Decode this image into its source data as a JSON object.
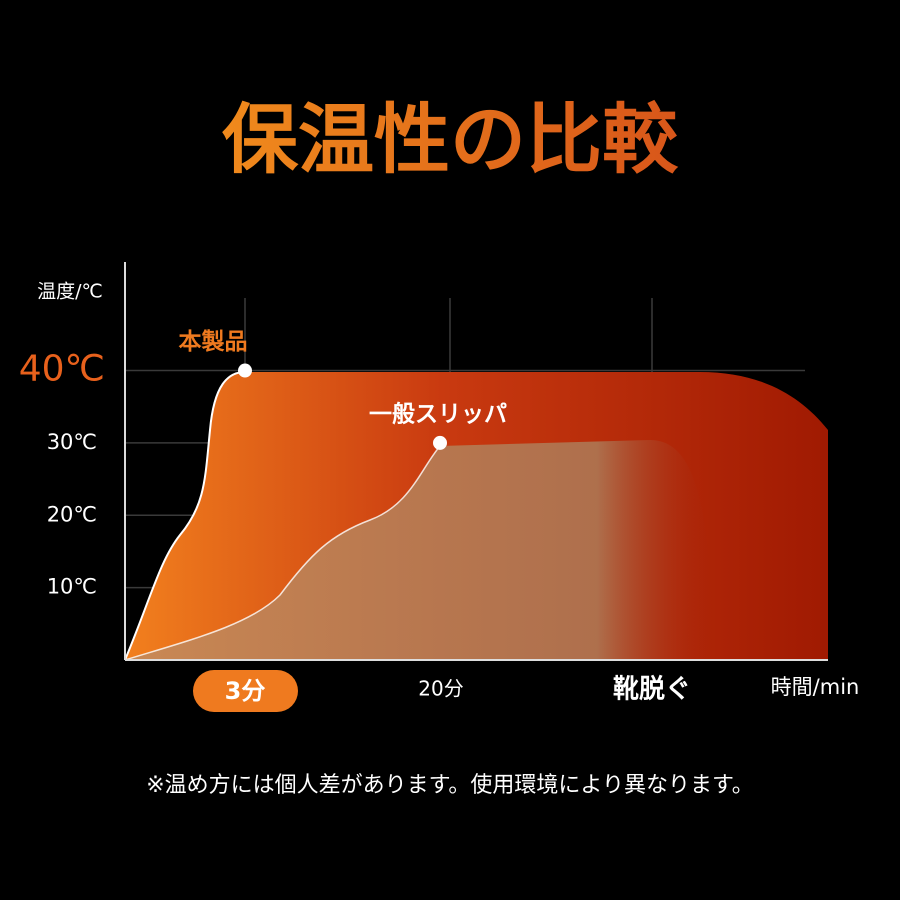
{
  "chart_data": {
    "type": "area",
    "title": "保温性の比較",
    "ylabel": "温度/℃",
    "xlabel": "時間/min",
    "categories": [
      "3分",
      "20分",
      "靴脱ぐ"
    ],
    "series": [
      {
        "name": "本製品",
        "color": "#ef7a1f",
        "values": [
          40,
          null,
          null
        ]
      },
      {
        "name": "一般スリッパ",
        "color": "#b07a50",
        "values": [
          null,
          30,
          null
        ]
      }
    ],
    "ylim": [
      0,
      55
    ],
    "yticks": [
      {
        "value": 10,
        "label": "10℃"
      },
      {
        "value": 20,
        "label": "20℃"
      },
      {
        "value": 30,
        "label": "30℃"
      },
      {
        "value": 40,
        "label": "40℃"
      }
    ],
    "grid": true,
    "note": "※温め方には個人差があります。使用環境により異なります。"
  }
}
